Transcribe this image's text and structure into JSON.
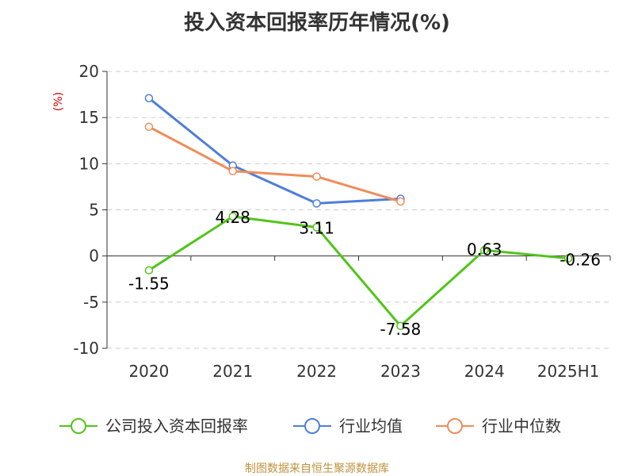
{
  "chart_data": {
    "type": "line",
    "title": "投入资本回报率历年情况(%)",
    "ylabel": "(%)",
    "categories": [
      "2020",
      "2021",
      "2022",
      "2023",
      "2024",
      "2025H1"
    ],
    "ylim": [
      -10,
      20
    ],
    "yticks": [
      "20",
      "15",
      "10",
      "5",
      "0",
      "-5",
      "-10"
    ],
    "grid": true,
    "legend_position": "bottom",
    "series": [
      {
        "name": "公司投入资本回报率",
        "values": [
          -1.55,
          4.28,
          3.11,
          -7.58,
          0.63,
          -0.26
        ],
        "labels": [
          "-1.55",
          "4.28",
          "3.11",
          "-7.58",
          "0.63",
          "-0.26"
        ],
        "color": "#52c41a"
      },
      {
        "name": "行业均值",
        "values": [
          17.1,
          9.8,
          5.7,
          6.2,
          null,
          null
        ],
        "color": "#4e7fd9"
      },
      {
        "name": "行业中位数",
        "values": [
          14.0,
          9.2,
          8.6,
          5.9,
          null,
          null
        ],
        "color": "#f08c5a"
      }
    ],
    "source": "制图数据来自恒生聚源数据库"
  },
  "colors": {
    "axis": "#333333",
    "grid": "#cccccc",
    "ylabel": "#cc0000",
    "source": "#c0913d"
  }
}
